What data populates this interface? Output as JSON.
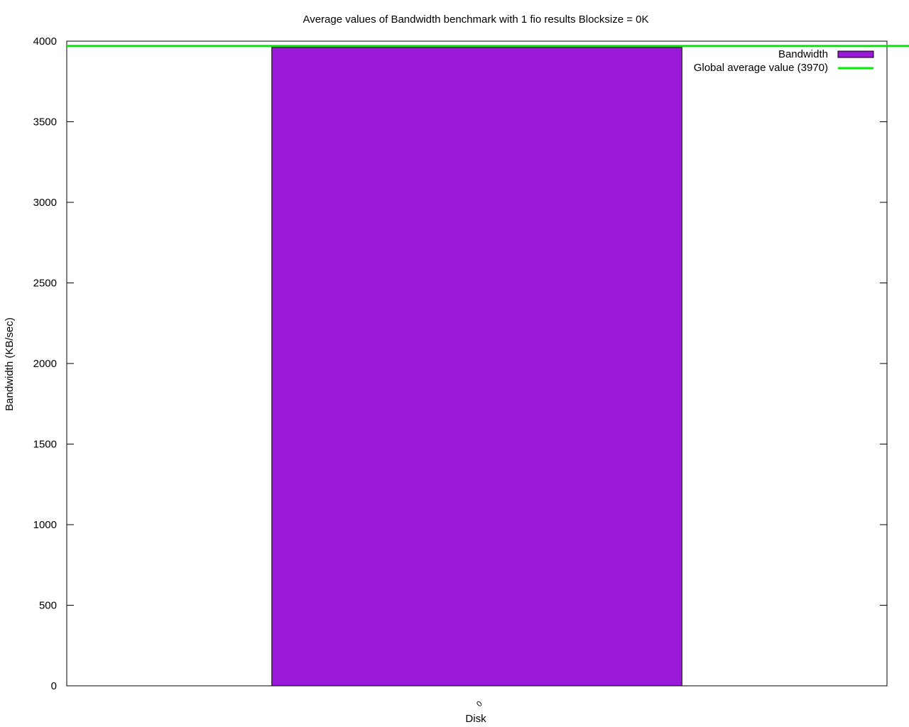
{
  "chart_data": {
    "type": "bar",
    "title": "Average values of Bandwidth benchmark with 1 fio results  Blocksize = 0K",
    "xlabel": "Disk",
    "ylabel": "Bandwidth (KB/sec)",
    "categories": [
      "0"
    ],
    "series": [
      {
        "name": "Bandwidth",
        "values": [
          3962
        ],
        "color": "#9a19d9"
      }
    ],
    "reference_line": {
      "label": "Global average value (3970)",
      "value": 3970,
      "color": "#00ee00"
    },
    "ylim": [
      0,
      4000
    ],
    "yticks": [
      0,
      500,
      1000,
      1500,
      2000,
      2500,
      3000,
      3500,
      4000
    ],
    "grid": false,
    "legend_position": "top-right"
  }
}
